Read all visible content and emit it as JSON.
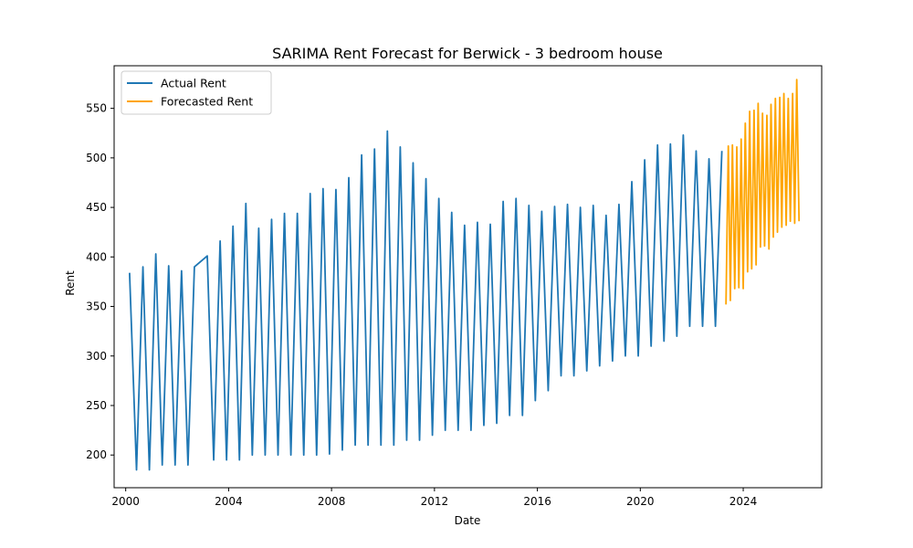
{
  "chart_data": {
    "type": "line",
    "title": "SARIMA Rent Forecast for Berwick - 3 bedroom house",
    "xlabel": "Date",
    "ylabel": "Rent",
    "xlim": [
      1999.55,
      2027.05
    ],
    "ylim": [
      167,
      593
    ],
    "x_ticks": [
      2000,
      2004,
      2008,
      2012,
      2016,
      2020,
      2024
    ],
    "x_tick_labels": [
      "2000",
      "2004",
      "2008",
      "2012",
      "2016",
      "2020",
      "2024"
    ],
    "y_ticks": [
      200,
      250,
      300,
      350,
      400,
      450,
      500,
      550
    ],
    "y_tick_labels": [
      "200",
      "250",
      "300",
      "350",
      "400",
      "450",
      "500",
      "550"
    ],
    "grid": false,
    "legend_position": "top-left",
    "series": [
      {
        "name": "Actual Rent",
        "color": "#1f77b4",
        "x": [
          2000.15,
          2000.42,
          2000.67,
          2000.92,
          2001.17,
          2001.42,
          2001.67,
          2001.92,
          2002.17,
          2002.42,
          2002.67,
          2003.17,
          2003.42,
          2003.67,
          2003.92,
          2004.17,
          2004.42,
          2004.67,
          2004.92,
          2005.17,
          2005.42,
          2005.67,
          2005.92,
          2006.17,
          2006.42,
          2006.67,
          2006.92,
          2007.17,
          2007.42,
          2007.67,
          2007.92,
          2008.17,
          2008.42,
          2008.67,
          2008.92,
          2009.17,
          2009.42,
          2009.67,
          2009.92,
          2010.17,
          2010.42,
          2010.67,
          2010.92,
          2011.17,
          2011.42,
          2011.67,
          2011.92,
          2012.17,
          2012.42,
          2012.67,
          2012.92,
          2013.17,
          2013.42,
          2013.67,
          2013.92,
          2014.17,
          2014.42,
          2014.67,
          2014.92,
          2015.17,
          2015.42,
          2015.67,
          2015.92,
          2016.17,
          2016.42,
          2016.67,
          2016.92,
          2017.17,
          2017.42,
          2017.67,
          2017.92,
          2018.17,
          2018.42,
          2018.67,
          2018.92,
          2019.17,
          2019.42,
          2019.67,
          2019.92,
          2020.17,
          2020.42,
          2020.67,
          2020.92,
          2021.17,
          2021.42,
          2021.67,
          2021.92,
          2022.17,
          2022.42,
          2022.67,
          2022.92,
          2023.17
        ],
        "y": [
          384,
          185,
          390,
          185,
          403,
          190,
          391,
          190,
          386,
          190,
          390,
          401,
          195,
          416,
          195,
          431,
          195,
          454,
          200,
          429,
          200,
          438,
          200,
          444,
          200,
          444,
          200,
          464,
          200,
          469,
          201,
          468,
          205,
          480,
          210,
          503,
          210,
          509,
          210,
          527,
          210,
          511,
          215,
          495,
          215,
          479,
          220,
          459,
          225,
          445,
          225,
          432,
          225,
          435,
          230,
          433,
          232,
          456,
          240,
          459,
          240,
          452,
          255,
          446,
          265,
          451,
          280,
          453,
          280,
          450,
          285,
          452,
          290,
          442,
          295,
          453,
          300,
          476,
          300,
          498,
          310,
          513,
          315,
          514,
          320,
          523,
          330,
          507,
          330,
          499,
          330,
          507
        ]
      },
      {
        "name": "Forecasted Rent",
        "color": "#ffa500",
        "x": [
          2023.33,
          2023.42,
          2023.5,
          2023.58,
          2023.67,
          2023.75,
          2023.83,
          2023.92,
          2024.0,
          2024.08,
          2024.17,
          2024.25,
          2024.33,
          2024.42,
          2024.5,
          2024.58,
          2024.67,
          2024.75,
          2024.83,
          2024.92,
          2025.0,
          2025.08,
          2025.17,
          2025.25,
          2025.33,
          2025.42,
          2025.5,
          2025.58,
          2025.67,
          2025.75,
          2025.83,
          2025.92,
          2026.0,
          2026.08,
          2026.17
        ],
        "y": [
          352,
          512,
          356,
          513,
          368,
          511,
          369,
          519,
          368,
          535,
          385,
          547,
          388,
          548,
          392,
          555,
          410,
          545,
          411,
          543,
          408,
          554,
          420,
          560,
          425,
          561,
          430,
          565,
          432,
          560,
          436,
          565,
          434,
          579,
          436
        ]
      }
    ]
  }
}
